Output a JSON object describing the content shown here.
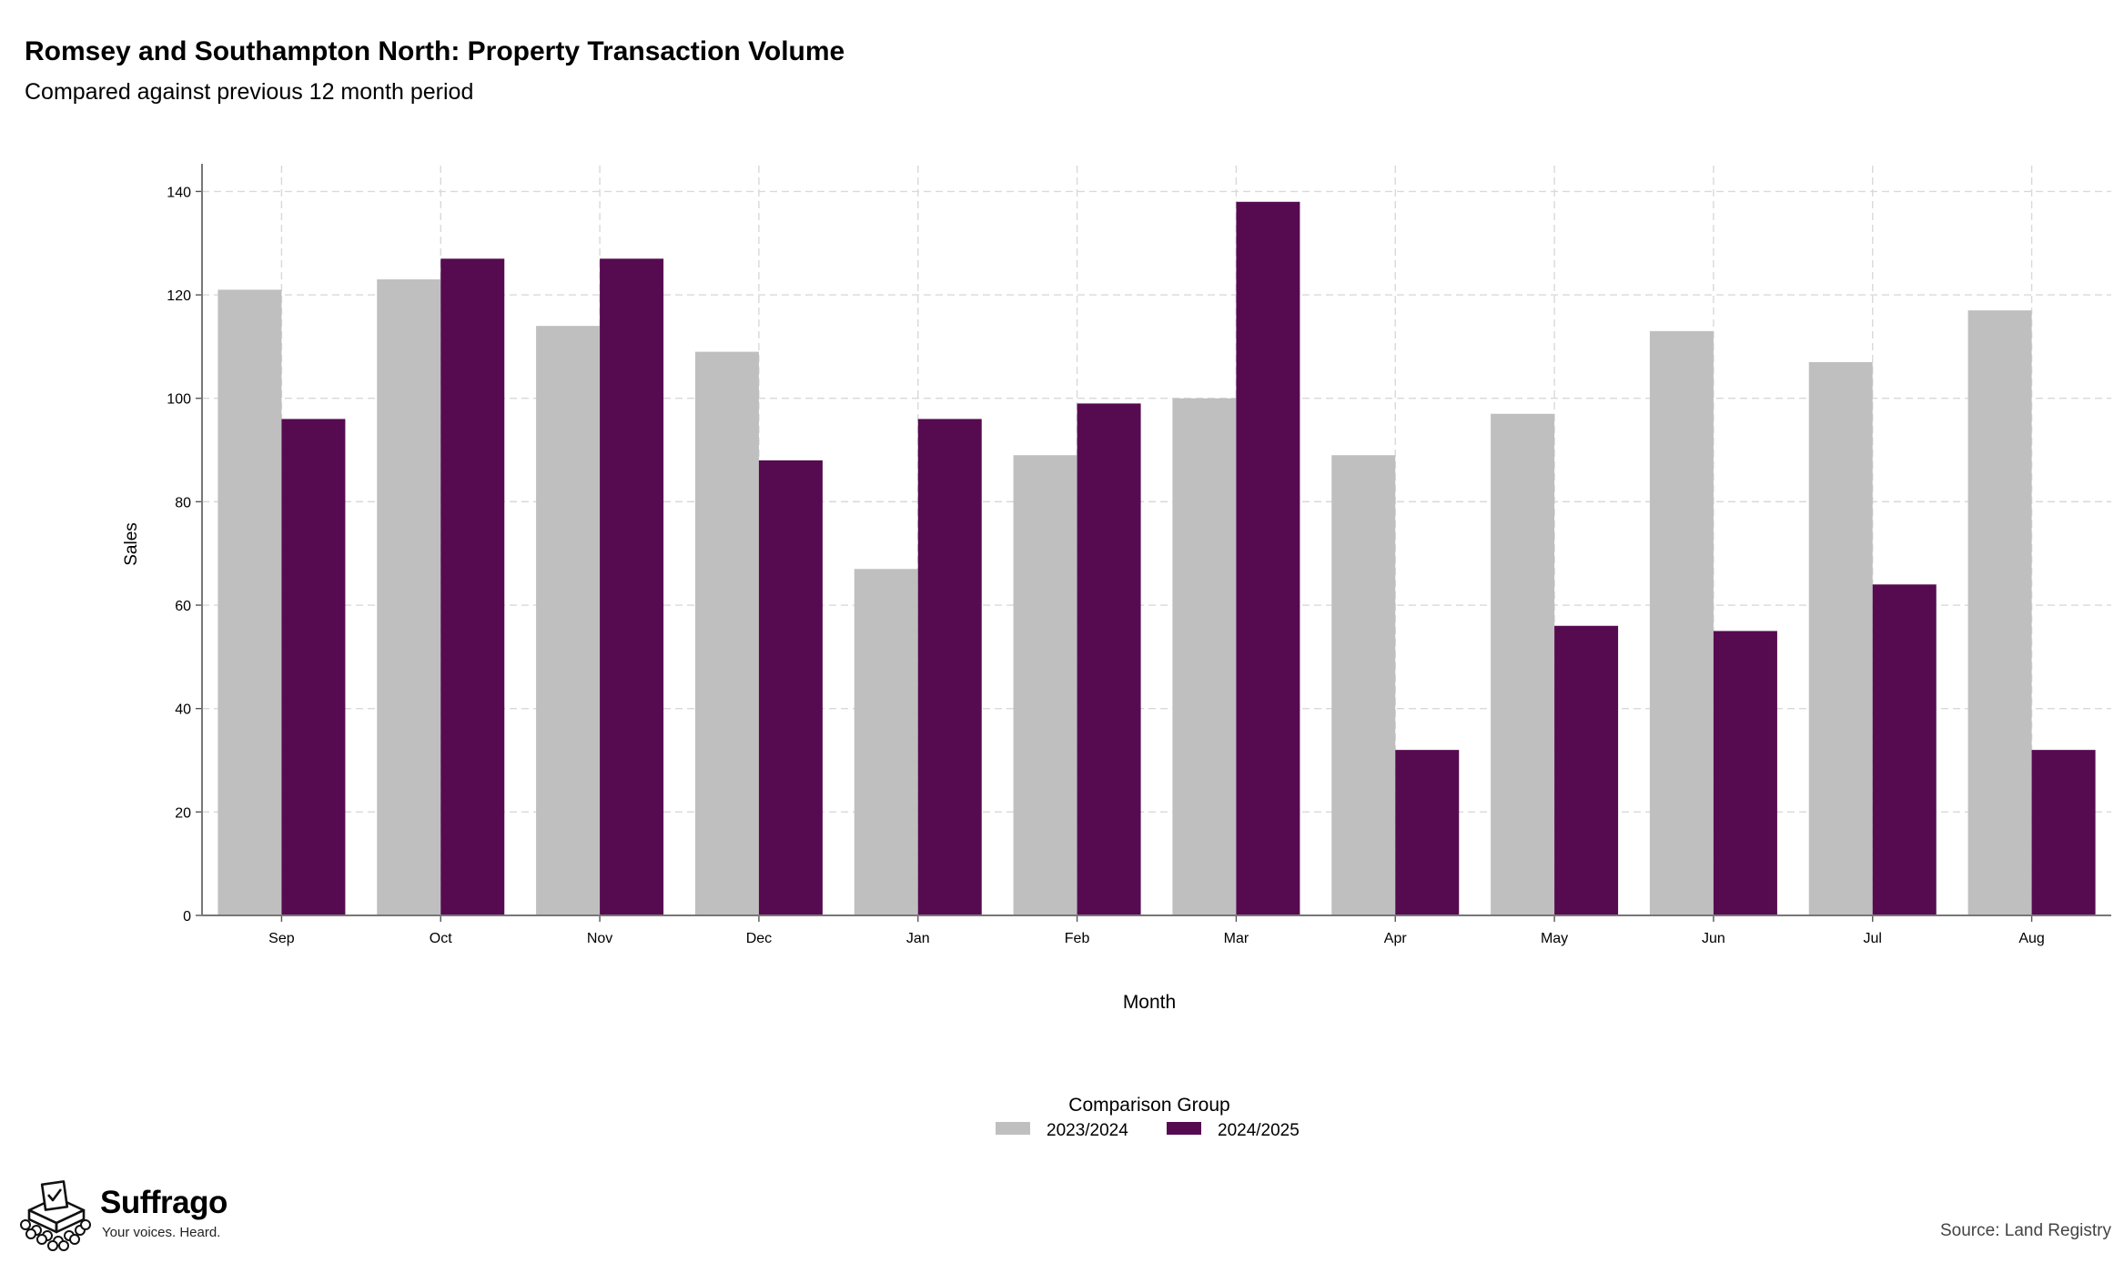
{
  "header": {
    "title": "Romsey and Southampton North: Property Transaction Volume",
    "subtitle": "Compared against previous 12 month period"
  },
  "chart_data": {
    "type": "bar",
    "categories": [
      "Sep",
      "Oct",
      "Nov",
      "Dec",
      "Jan",
      "Feb",
      "Mar",
      "Apr",
      "May",
      "Jun",
      "Jul",
      "Aug"
    ],
    "series": [
      {
        "name": "2023/2024",
        "color": "#bfbfbf",
        "values": [
          121,
          123,
          114,
          109,
          67,
          89,
          100,
          89,
          97,
          113,
          107,
          117
        ]
      },
      {
        "name": "2024/2025",
        "color": "#560b50",
        "values": [
          96,
          127,
          127,
          88,
          96,
          99,
          138,
          32,
          56,
          55,
          64,
          32
        ]
      }
    ],
    "xlabel": "Month",
    "ylabel": "Sales",
    "ylim": [
      0,
      145
    ],
    "yticks": [
      0,
      20,
      40,
      60,
      80,
      100,
      120,
      140
    ],
    "grid": true,
    "legend_title": "Comparison Group",
    "legend_position": "bottom"
  },
  "footer": {
    "brand_name": "Suffrago",
    "brand_tagline": "Your voices. Heard.",
    "source": "Source: Land Registry"
  }
}
